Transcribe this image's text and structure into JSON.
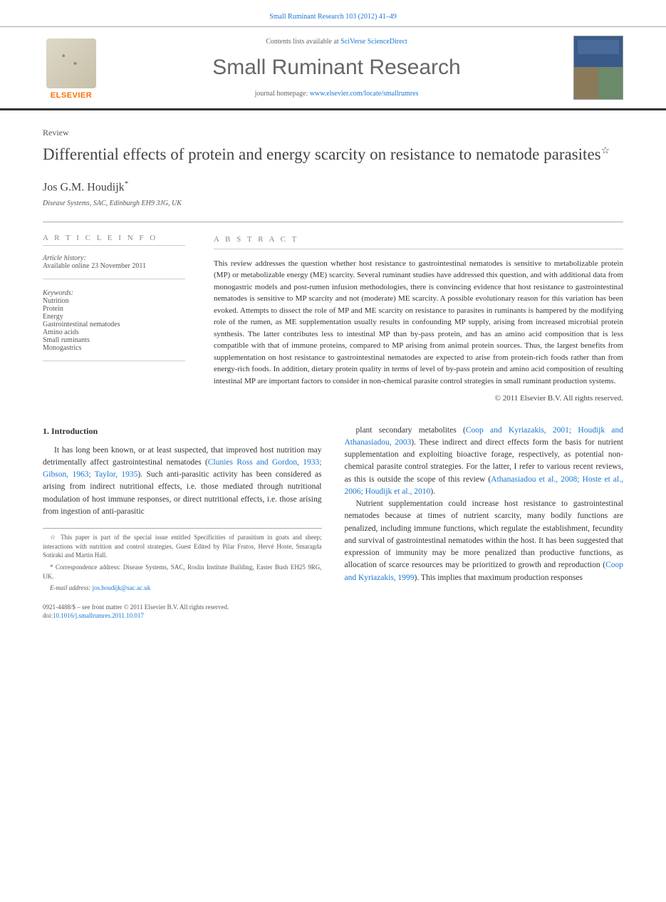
{
  "header": {
    "citation": "Small Ruminant Research 103 (2012) 41–49",
    "contents_prefix": "Contents lists available at ",
    "contents_link": "SciVerse ScienceDirect",
    "journal": "Small Ruminant Research",
    "homepage_prefix": "journal homepage: ",
    "homepage_url": "www.elsevier.com/locate/smallrumres",
    "publisher": "ELSEVIER"
  },
  "article": {
    "type": "Review",
    "title": "Differential effects of protein and energy scarcity on resistance to nematode parasites",
    "title_note": "☆",
    "author": "Jos G.M. Houdijk",
    "author_marker": "*",
    "affiliation": "Disease Systems, SAC, Edinburgh EH9 3JG, UK"
  },
  "info": {
    "heading": "A R T I C L E   I N F O",
    "history_label": "Article history:",
    "history_online": "Available online 23 November 2011",
    "keywords_label": "Keywords:",
    "keywords": [
      "Nutrition",
      "Protein",
      "Energy",
      "Gastrointestinal nematodes",
      "Amino acids",
      "Small ruminants",
      "Monogastrics"
    ]
  },
  "abstract": {
    "heading": "A B S T R A C T",
    "text": "This review addresses the question whether host resistance to gastrointestinal nematodes is sensitive to metabolizable protein (MP) or metabolizable energy (ME) scarcity. Several ruminant studies have addressed this question, and with additional data from monogastric models and post-rumen infusion methodologies, there is convincing evidence that host resistance to gastrointestinal nematodes is sensitive to MP scarcity and not (moderate) ME scarcity. A possible evolutionary reason for this variation has been evoked. Attempts to dissect the role of MP and ME scarcity on resistance to parasites in ruminants is hampered by the modifying role of the rumen, as ME supplementation usually results in confounding MP supply, arising from increased microbial protein synthesis. The latter contributes less to intestinal MP than by-pass protein, and has an amino acid composition that is less compatible with that of immune proteins, compared to MP arising from animal protein sources. Thus, the largest benefits from supplementation on host resistance to gastrointestinal nematodes are expected to arise from protein-rich foods rather than from energy-rich foods. In addition, dietary protein quality in terms of level of by-pass protein and amino acid composition of resulting intestinal MP are important factors to consider in non-chemical parasite control strategies in small ruminant production systems.",
    "copyright": "© 2011 Elsevier B.V. All rights reserved."
  },
  "body": {
    "section_number": "1.",
    "section_title": "Introduction",
    "col1_p1_a": "It has long been known, or at least suspected, that improved host nutrition may detrimentally affect gastrointestinal nematodes (",
    "col1_p1_link": "Clunies Ross and Gordon, 1933; Gibson, 1963; Taylor, 1935",
    "col1_p1_b": "). Such anti-parasitic activity has been considered as arising from indirect nutritional effects, i.e. those mediated through nutritional modulation of host immune responses, or direct nutritional effects, i.e. those arising from ingestion of anti-parasitic",
    "col2_p1_a": "plant secondary metabolites (",
    "col2_p1_link1": "Coop and Kyriazakis, 2001; Houdijk and Athanasiadou, 2003",
    "col2_p1_b": "). These indirect and direct effects form the basis for nutrient supplementation and exploiting bioactive forage, respectively, as potential non-chemical parasite control strategies. For the latter, I refer to various recent reviews, as this is outside the scope of this review (",
    "col2_p1_link2": "Athanasiadou et al., 2008; Hoste et al., 2006; Houdijk et al., 2010",
    "col2_p1_c": ").",
    "col2_p2_a": "Nutrient supplementation could increase host resistance to gastrointestinal nematodes because at times of nutrient scarcity, many bodily functions are penalized, including immune functions, which regulate the establishment, fecundity and survival of gastrointestinal nematodes within the host. It has been suggested that expression of immunity may be more penalized than productive functions, as allocation of scarce resources may be prioritized to growth and reproduction (",
    "col2_p2_link": "Coop and Kyriazakis, 1999",
    "col2_p2_b": "). This implies that maximum production responses"
  },
  "footnotes": {
    "star": "☆ This paper is part of the special issue entitled Specificities of parasitism in goats and sheep; interactions with nutrition and control strategies, Guest Edited by Pilar Frutos, Hervé Hoste, Smaragda Sotiraki and Martin Hall.",
    "corr_label": "* Correspondence address: ",
    "corr_text": "Disease Systems, SAC, Roslin Institute Building, Easter Bush EH25 9RG, UK.",
    "email_label": "E-mail address: ",
    "email": "jos.houdijk@sac.ac.uk"
  },
  "footer": {
    "line1": "0921-4488/$ – see front matter © 2011 Elsevier B.V. All rights reserved.",
    "doi_prefix": "doi:",
    "doi": "10.1016/j.smallrumres.2011.10.017"
  },
  "colors": {
    "link": "#1976d2",
    "orange": "#ff6b00",
    "text": "#333333",
    "muted": "#666666",
    "rule": "#aaaaaa"
  }
}
